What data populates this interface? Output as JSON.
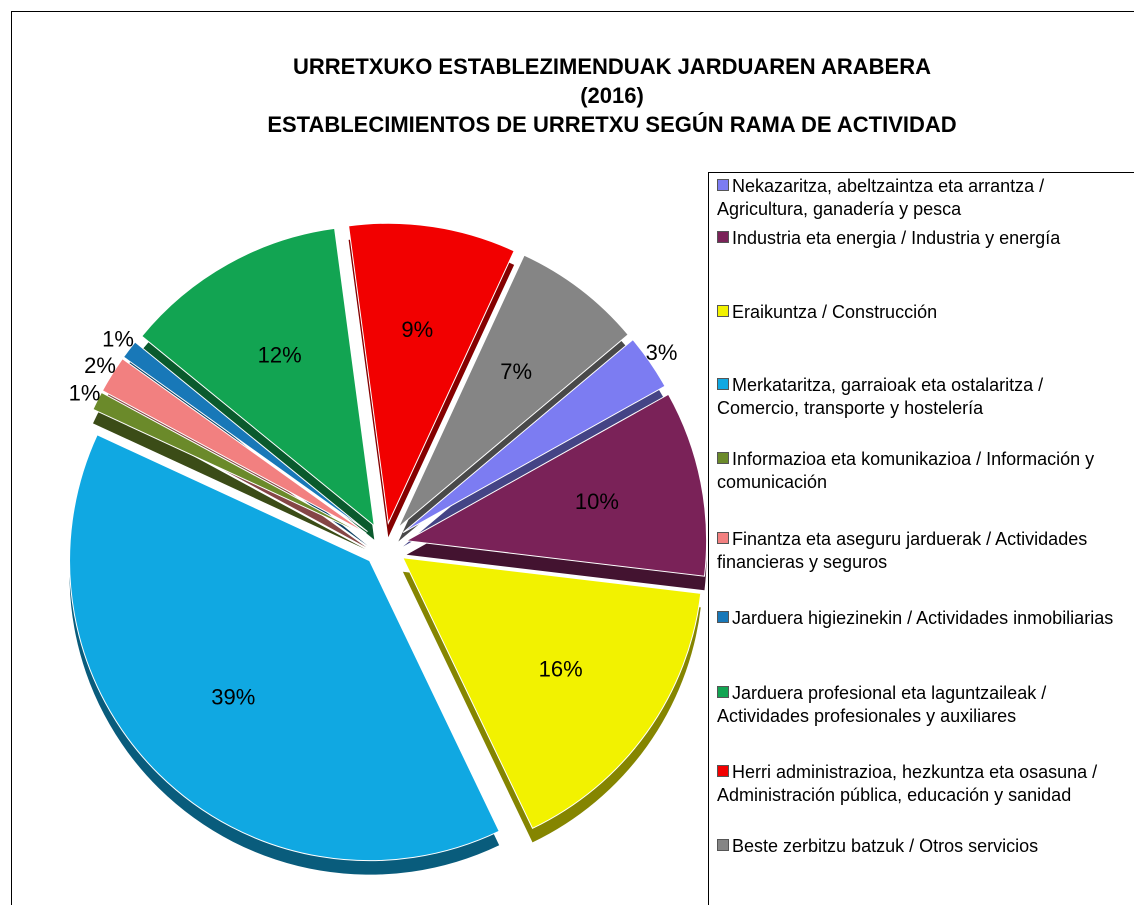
{
  "chart_data": {
    "type": "pie",
    "title": [
      "URRETXUKO ESTABLEZIMENDUAK JARDUAREN ARABERA",
      "(2016)",
      "ESTABLECIMIENTOS DE URRETXU SEGÚN RAMA DE ACTIVIDAD"
    ],
    "categories": [
      "Nekazaritza, abeltzaintza eta arrantza / Agricultura, ganadería y pesca",
      "Industria eta energia / Industria y energía",
      "Eraikuntza / Construcción",
      "Merkataritza, garraioak eta ostalaritza / Comercio, transporte y hostelería",
      "Informazioa eta komunikazioa / Información y comunicación",
      "Finantza eta aseguru jarduerak / Actividades financieras y seguros",
      "Jarduera higiezinekin / Actividades inmobiliarias",
      "Jarduera profesional eta laguntzaileak / Actividades profesionales y auxiliares",
      "Herri administrazioa, hezkuntza eta osasuna / Administración pública, educación y sanidad",
      "Beste zerbitzu batzuk / Otros servicios"
    ],
    "values": [
      3,
      10,
      16,
      39,
      1,
      2,
      1,
      12,
      9,
      7
    ],
    "value_labels": [
      "3%",
      "10%",
      "16%",
      "39%",
      "1%",
      "2%",
      "1%",
      "12%",
      "9%",
      "7%"
    ],
    "colors": [
      "#7c7cf2",
      "#7a2258",
      "#f2f200",
      "#10a8e2",
      "#6b8a2a",
      "#f28080",
      "#1878b8",
      "#12a452",
      "#f20000",
      "#858585"
    ],
    "legend": "right"
  }
}
